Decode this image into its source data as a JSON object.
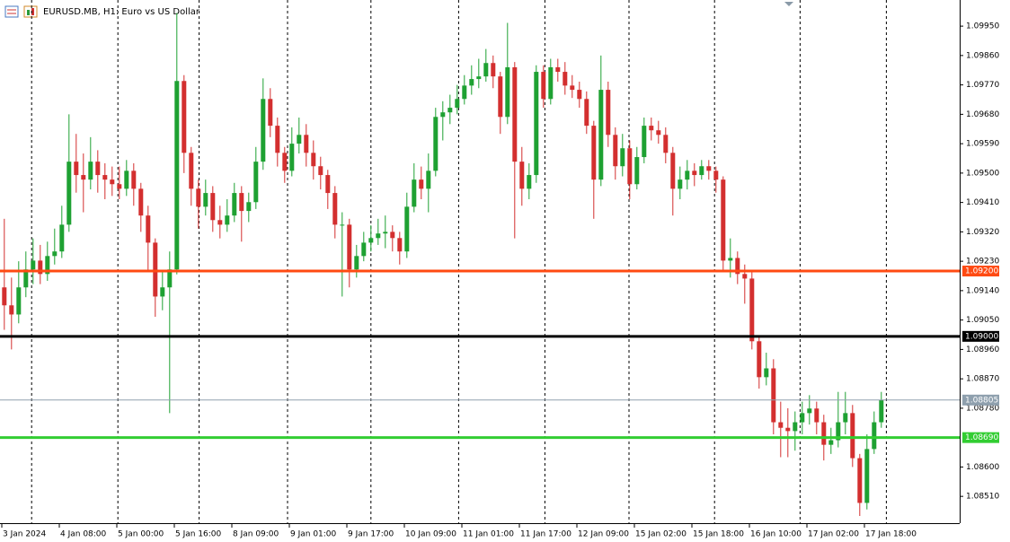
{
  "chart_data": {
    "type": "candlestick",
    "title": "EURUSD.MB, H1:  Euro vs US Dollar",
    "up_color": "#1ea132",
    "down_color": "#d32f2f",
    "x": [
      0,
      1,
      2,
      3,
      4,
      5,
      6,
      7,
      8,
      9,
      10,
      11,
      12,
      13,
      14,
      15,
      16,
      17,
      18,
      19,
      20,
      21,
      22,
      23,
      24,
      25,
      26,
      27,
      28,
      29,
      30,
      31,
      32,
      33,
      34,
      35,
      36,
      37,
      38,
      39,
      40,
      41,
      42,
      43,
      44,
      45,
      46,
      47,
      48,
      49,
      50,
      51,
      52,
      53,
      54,
      55,
      56,
      57,
      58,
      59,
      60,
      61,
      62,
      63,
      64,
      65,
      66,
      67,
      68,
      69,
      70,
      71,
      72,
      73,
      74,
      75,
      76,
      77,
      78,
      79,
      80,
      81,
      82,
      83,
      84,
      85,
      86,
      87,
      88,
      89,
      90,
      91,
      92,
      93,
      94,
      95,
      96,
      97,
      98,
      99,
      100,
      101,
      102,
      103,
      104,
      105,
      106,
      107,
      108,
      109,
      110,
      111,
      112,
      113,
      114,
      115,
      116,
      117,
      118,
      119,
      120,
      121,
      122
    ],
    "open": [
      1.0915,
      1.09095,
      1.09067,
      1.0915,
      1.09205,
      1.09232,
      1.09191,
      1.09246,
      1.0926,
      1.09342,
      1.09535,
      1.09494,
      1.0948,
      1.09535,
      1.09494,
      1.0948,
      1.09466,
      1.09452,
      1.09507,
      1.09452,
      1.0937,
      1.09287,
      1.09122,
      1.0915,
      1.09205,
      1.09782,
      1.09562,
      1.09452,
      1.09397,
      1.09439,
      1.09356,
      1.09342,
      1.0937,
      1.09439,
      1.09384,
      1.09411,
      1.09535,
      1.09727,
      1.09645,
      1.09562,
      1.09507,
      1.0959,
      1.09617,
      1.09562,
      1.09521,
      1.09494,
      1.09439,
      1.09342,
      1.09342,
      1.09205,
      1.09246,
      1.09287,
      1.09301,
      1.09315,
      1.0932,
      1.09301,
      1.0926,
      1.09397,
      1.0948,
      1.09452,
      1.09507,
      1.09672,
      1.09686,
      1.097,
      1.09727,
      1.09768,
      1.09788,
      1.09796,
      1.09837,
      1.09796,
      1.09672,
      1.09824,
      1.09535,
      1.09452,
      1.09494,
      1.0981,
      1.09727,
      1.09824,
      1.0981,
      1.09768,
      1.09755,
      1.09727,
      1.09645,
      1.0948,
      1.09755,
      1.09617,
      1.09521,
      1.09576,
      1.09466,
      1.09549,
      1.09645,
      1.09631,
      1.09617,
      1.09562,
      1.09452,
      1.0948,
      1.09507,
      1.09494,
      1.09521,
      1.09507,
      1.0948,
      1.09232,
      1.0924,
      1.09191,
      1.09177,
      1.08985,
      1.08875,
      1.08902,
      1.08737,
      1.0872,
      1.0871,
      1.08737,
      1.08765,
      1.08779,
      1.08737,
      1.08668,
      1.08682,
      1.08737,
      1.08765,
      1.08627,
      1.0849,
      1.08655,
      1.08737
    ],
    "high": [
      1.0936,
      1.0918,
      1.0923,
      1.0926,
      1.093,
      1.0928,
      1.0929,
      1.0933,
      1.094,
      1.0968,
      1.0962,
      1.0956,
      1.0961,
      1.0957,
      1.0953,
      1.0952,
      1.0952,
      1.0954,
      1.0953,
      1.0947,
      1.094,
      1.093,
      1.092,
      1.0926,
      1.0999,
      1.098,
      1.0958,
      1.0948,
      1.0948,
      1.0946,
      1.094,
      1.0942,
      1.0947,
      1.0946,
      1.0944,
      1.0958,
      1.0979,
      1.0976,
      1.0967,
      1.0958,
      1.0964,
      1.0967,
      1.0965,
      1.096,
      1.0955,
      1.0951,
      1.0946,
      1.0938,
      1.0936,
      1.0928,
      1.0932,
      1.0934,
      1.0936,
      1.0937,
      1.0934,
      1.0932,
      1.0944,
      1.0953,
      1.0952,
      1.0956,
      1.097,
      1.0972,
      1.0974,
      1.0977,
      1.098,
      1.0983,
      1.0985,
      1.0988,
      1.0986,
      1.0981,
      1.0996,
      1.0984,
      1.0958,
      1.0953,
      1.0983,
      1.0983,
      1.0985,
      1.0985,
      1.0984,
      1.098,
      1.0978,
      1.0975,
      1.0966,
      1.0986,
      1.0978,
      1.0964,
      1.0962,
      1.096,
      1.0958,
      1.0967,
      1.0967,
      1.0966,
      1.0964,
      1.0958,
      1.0952,
      1.0954,
      1.0953,
      1.0954,
      1.0954,
      1.0952,
      1.0949,
      1.093,
      1.0926,
      1.0922,
      1.092,
      1.09,
      1.0895,
      1.0893,
      1.088,
      1.0878,
      1.0877,
      1.088,
      1.0882,
      1.088,
      1.0876,
      1.0872,
      1.0883,
      1.0883,
      1.0879,
      1.0864,
      1.087,
      1.0877,
      1.0883
    ],
    "low": [
      1.0902,
      1.0896,
      1.0904,
      1.0912,
      1.0916,
      1.0916,
      1.0917,
      1.0922,
      1.0924,
      1.0932,
      1.0944,
      1.0938,
      1.0945,
      1.0944,
      1.0942,
      1.0943,
      1.0942,
      1.0943,
      1.094,
      1.0932,
      1.092,
      1.0906,
      1.0908,
      1.08765,
      1.0919,
      1.095,
      1.094,
      1.0933,
      1.0937,
      1.0932,
      1.093,
      1.0932,
      1.0935,
      1.0929,
      1.0935,
      1.0939,
      1.0951,
      1.0961,
      1.0952,
      1.0947,
      1.0949,
      1.0956,
      1.0952,
      1.0948,
      1.0945,
      1.0939,
      1.093,
      1.09122,
      1.0915,
      1.0918,
      1.0923,
      1.0926,
      1.0928,
      1.0927,
      1.0926,
      1.0922,
      1.0924,
      1.0938,
      1.0942,
      1.0938,
      1.0949,
      1.096,
      1.0965,
      1.0968,
      1.0971,
      1.0974,
      1.0976,
      1.0978,
      1.0976,
      1.0962,
      1.0965,
      1.093,
      1.094,
      1.0942,
      1.0947,
      1.097,
      1.0971,
      1.0978,
      1.0974,
      1.0973,
      1.097,
      1.0962,
      1.0936,
      1.0946,
      1.0958,
      1.0948,
      1.0949,
      1.0942,
      1.0945,
      1.0953,
      1.096,
      1.0959,
      1.0953,
      1.0937,
      1.0942,
      1.0945,
      1.0946,
      1.0948,
      1.0948,
      1.0944,
      1.092,
      1.0918,
      1.0916,
      1.091,
      1.0896,
      1.0884,
      1.0885,
      1.087,
      1.0863,
      1.0863,
      1.0865,
      1.087,
      1.0873,
      1.087,
      1.0862,
      1.0864,
      1.0866,
      1.087,
      1.086,
      1.0845,
      1.0847,
      1.0864,
      1.0872
    ],
    "close": [
      1.09095,
      1.09067,
      1.0915,
      1.09205,
      1.09232,
      1.09191,
      1.09246,
      1.0926,
      1.09342,
      1.09535,
      1.09494,
      1.0948,
      1.09535,
      1.09494,
      1.0948,
      1.09466,
      1.09452,
      1.09507,
      1.09452,
      1.0937,
      1.09287,
      1.09122,
      1.0915,
      1.09205,
      1.09782,
      1.09562,
      1.09452,
      1.09397,
      1.09439,
      1.09356,
      1.09342,
      1.0937,
      1.09439,
      1.09384,
      1.09411,
      1.09535,
      1.09727,
      1.09645,
      1.09562,
      1.09507,
      1.0959,
      1.09617,
      1.09562,
      1.09521,
      1.09494,
      1.09439,
      1.09342,
      1.09342,
      1.09205,
      1.09246,
      1.09287,
      1.09301,
      1.09315,
      1.0932,
      1.09301,
      1.0926,
      1.09397,
      1.0948,
      1.09452,
      1.09507,
      1.09672,
      1.09686,
      1.097,
      1.09727,
      1.09768,
      1.09788,
      1.09796,
      1.09837,
      1.09796,
      1.09672,
      1.09824,
      1.09535,
      1.09452,
      1.09494,
      1.0981,
      1.09727,
      1.09824,
      1.0981,
      1.09768,
      1.09755,
      1.09727,
      1.09645,
      1.0948,
      1.09755,
      1.09617,
      1.09521,
      1.09576,
      1.09466,
      1.09549,
      1.09645,
      1.09631,
      1.09617,
      1.09562,
      1.09452,
      1.0948,
      1.09507,
      1.09494,
      1.09521,
      1.09507,
      1.0948,
      1.09232,
      1.0924,
      1.09191,
      1.09177,
      1.08985,
      1.08875,
      1.08902,
      1.08737,
      1.0872,
      1.0871,
      1.08737,
      1.08765,
      1.08779,
      1.08737,
      1.08668,
      1.08682,
      1.08737,
      1.08765,
      1.08627,
      1.0849,
      1.08655,
      1.08737,
      1.08805
    ],
    "xlim": [
      -0.6,
      132.9
    ],
    "ylim": [
      1.08428,
      1.1003
    ],
    "yticks": [
      {
        "value": 1.0995,
        "label": "1.09950"
      },
      {
        "value": 1.0986,
        "label": "1.09860"
      },
      {
        "value": 1.0977,
        "label": "1.09770"
      },
      {
        "value": 1.0968,
        "label": "1.09680"
      },
      {
        "value": 1.0959,
        "label": "1.09590"
      },
      {
        "value": 1.095,
        "label": "1.09500"
      },
      {
        "value": 1.0941,
        "label": "1.09410"
      },
      {
        "value": 1.0932,
        "label": "1.09320"
      },
      {
        "value": 1.0923,
        "label": "1.09230"
      },
      {
        "value": 1.0914,
        "label": "1.09140"
      },
      {
        "value": 1.0905,
        "label": "1.09050"
      },
      {
        "value": 1.0896,
        "label": "1.08960"
      },
      {
        "value": 1.0887,
        "label": "1.08870"
      },
      {
        "value": 1.0878,
        "label": "1.08780"
      },
      {
        "value": 1.086,
        "label": "1.08600"
      },
      {
        "value": 1.0851,
        "label": "1.08510"
      }
    ],
    "xticks": [
      {
        "value": -0.35,
        "label": "3 Jan 2024"
      },
      {
        "value": 7.65,
        "label": "4 Jan 08:00"
      },
      {
        "value": 15.65,
        "label": "5 Jan 00:00"
      },
      {
        "value": 23.65,
        "label": "5 Jan 16:00"
      },
      {
        "value": 31.65,
        "label": "8 Jan 09:00"
      },
      {
        "value": 39.65,
        "label": "9 Jan 01:00"
      },
      {
        "value": 47.65,
        "label": "9 Jan 17:00"
      },
      {
        "value": 55.65,
        "label": "10 Jan 09:00"
      },
      {
        "value": 63.65,
        "label": "11 Jan 01:00"
      },
      {
        "value": 71.65,
        "label": "11 Jan 17:00"
      },
      {
        "value": 79.65,
        "label": "12 Jan 09:00"
      },
      {
        "value": 87.65,
        "label": "15 Jan 02:00"
      },
      {
        "value": 95.65,
        "label": "15 Jan 18:00"
      },
      {
        "value": 103.65,
        "label": "16 Jan 10:00"
      },
      {
        "value": 111.65,
        "label": "17 Jan 02:00"
      },
      {
        "value": 119.65,
        "label": "17 Jan 18:00"
      }
    ],
    "xgrid": [
      3.8,
      15.8,
      27.1,
      39.4,
      51,
      63.2,
      75.2,
      86.9,
      98.8,
      110.7,
      122.7
    ],
    "levels": [
      {
        "value": 1.092,
        "label": "1.09200",
        "color": "#ff4a12",
        "width": 3
      },
      {
        "value": 1.09,
        "label": "1.09000",
        "color": "#000000",
        "width": 3
      },
      {
        "value": 1.08805,
        "label": "1.08805",
        "color": "#8fa0ae",
        "width": 1
      },
      {
        "value": 1.0869,
        "label": "1.08690",
        "color": "#32cd32",
        "width": 3
      }
    ]
  }
}
